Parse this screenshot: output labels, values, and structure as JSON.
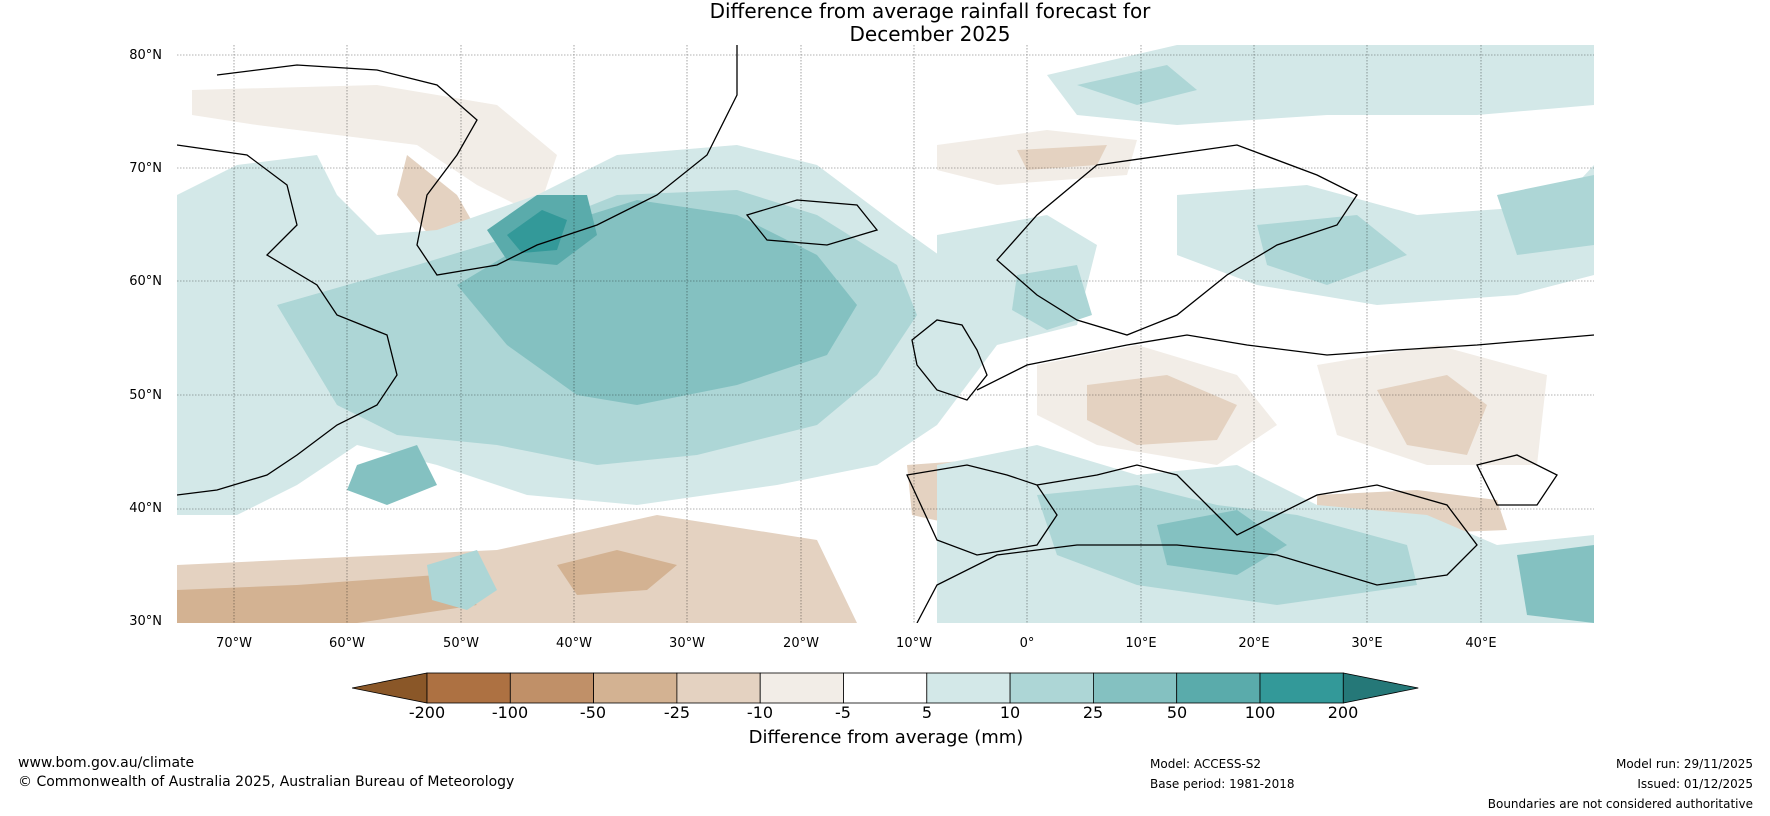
{
  "title": {
    "line1": "Difference from average rainfall forecast for",
    "line2": "December 2025"
  },
  "map": {
    "lat_labels": [
      "80°N",
      "70°N",
      "60°N",
      "50°N",
      "40°N",
      "30°N"
    ],
    "lon_labels": [
      "70°W",
      "60°W",
      "50°W",
      "40°W",
      "30°W",
      "20°W",
      "10°W",
      "0°",
      "10°E",
      "20°E",
      "30°E",
      "40°E"
    ],
    "lon_range": [
      -75,
      50
    ],
    "lat_range": [
      30,
      81
    ]
  },
  "colorbar": {
    "ticks": [
      "-200",
      "-100",
      "-50",
      "-25",
      "-10",
      "-5",
      "5",
      "10",
      "25",
      "50",
      "100",
      "200"
    ],
    "colors": [
      "#8a5728",
      "#ad7142",
      "#c09068",
      "#d3b292",
      "#e4d2c1",
      "#f2ede7",
      "#ffffff",
      "#d3e8e8",
      "#add6d6",
      "#84c1c1",
      "#5aabab",
      "#339999",
      "#257878"
    ],
    "label": "Difference from average (mm)"
  },
  "footer": {
    "website": "www.bom.gov.au/climate",
    "copyright": "© Commonwealth of Australia 2025, Australian Bureau of Meteorology",
    "model": "Model: ACCESS-S2",
    "base_period": "Base period: 1981-2018",
    "model_run": "Model run: 29/11/2025",
    "issued": "Issued: 01/12/2025",
    "boundaries": "Boundaries are not considered authoritative"
  }
}
